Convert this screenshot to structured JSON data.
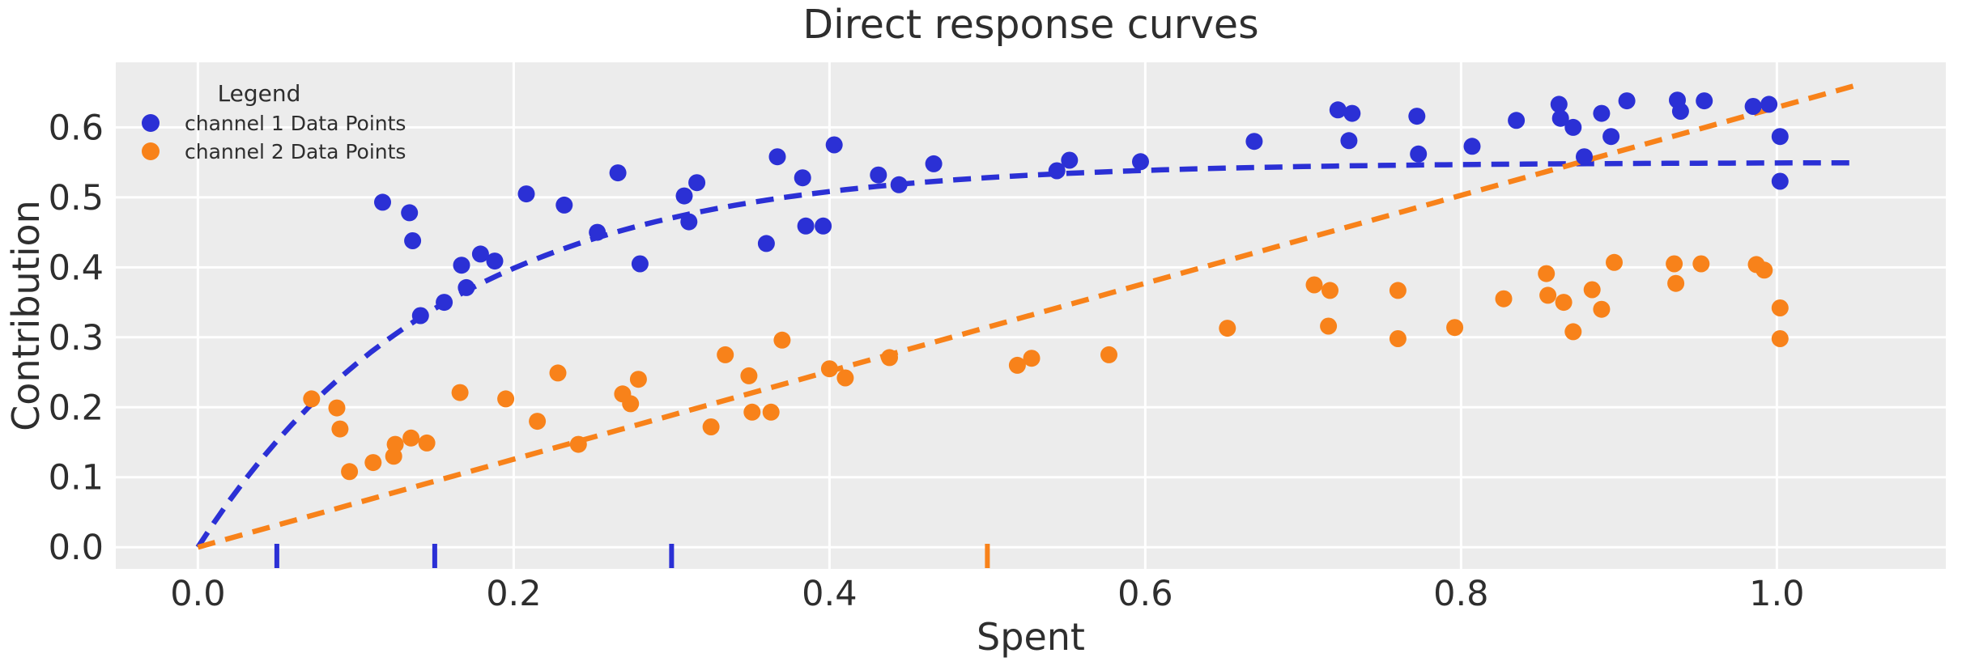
{
  "title": "Direct response curves",
  "axes": {
    "xlabel": "Spent",
    "ylabel": "Contribution"
  },
  "legend": {
    "title": "Legend",
    "entries": [
      {
        "label": "channel 1 Data Points",
        "color": "#2b30d5"
      },
      {
        "label": "channel 2 Data Points",
        "color": "#f8821a"
      }
    ]
  },
  "colors": {
    "plot_background": "#ececec",
    "gridline": "#ffffff",
    "text": "#2e2e2e",
    "channel1": "#2b30d5",
    "channel2": "#f8821a"
  },
  "chart_data": {
    "type": "scatter",
    "title": "Direct response curves",
    "xlabel": "Spent",
    "ylabel": "Contribution",
    "xlim": [
      -0.052,
      1.107
    ],
    "ylim": [
      -0.031,
      0.693
    ],
    "x_ticks": [
      0.0,
      0.2,
      0.4,
      0.6,
      0.8,
      1.0
    ],
    "y_ticks": [
      0.0,
      0.1,
      0.2,
      0.3,
      0.4,
      0.5,
      0.6
    ],
    "grid": true,
    "legend_position": "upper left",
    "series": [
      {
        "name": "channel 1 Data Points",
        "color": "#2b30d5",
        "marker_radius": 10.5,
        "points": [
          [
            0.117,
            0.493
          ],
          [
            0.134,
            0.478
          ],
          [
            0.136,
            0.438
          ],
          [
            0.141,
            0.331
          ],
          [
            0.156,
            0.35
          ],
          [
            0.17,
            0.371
          ],
          [
            0.167,
            0.403
          ],
          [
            0.179,
            0.419
          ],
          [
            0.188,
            0.409
          ],
          [
            0.208,
            0.505
          ],
          [
            0.232,
            0.489
          ],
          [
            0.253,
            0.45
          ],
          [
            0.266,
            0.535
          ],
          [
            0.28,
            0.405
          ],
          [
            0.308,
            0.502
          ],
          [
            0.316,
            0.521
          ],
          [
            0.311,
            0.465
          ],
          [
            0.36,
            0.434
          ],
          [
            0.367,
            0.558
          ],
          [
            0.383,
            0.528
          ],
          [
            0.403,
            0.575
          ],
          [
            0.385,
            0.459
          ],
          [
            0.396,
            0.459
          ],
          [
            0.431,
            0.532
          ],
          [
            0.444,
            0.518
          ],
          [
            0.466,
            0.548
          ],
          [
            0.544,
            0.538
          ],
          [
            0.552,
            0.553
          ],
          [
            0.597,
            0.551
          ],
          [
            0.669,
            0.58
          ],
          [
            0.722,
            0.625
          ],
          [
            0.731,
            0.62
          ],
          [
            0.729,
            0.581
          ],
          [
            0.772,
            0.616
          ],
          [
            0.773,
            0.562
          ],
          [
            0.807,
            0.573
          ],
          [
            0.835,
            0.61
          ],
          [
            0.862,
            0.633
          ],
          [
            0.863,
            0.613
          ],
          [
            0.871,
            0.6
          ],
          [
            0.889,
            0.62
          ],
          [
            0.895,
            0.587
          ],
          [
            0.878,
            0.558
          ],
          [
            0.905,
            0.638
          ],
          [
            0.937,
            0.639
          ],
          [
            0.939,
            0.623
          ],
          [
            0.954,
            0.638
          ],
          [
            0.985,
            0.63
          ],
          [
            0.995,
            0.633
          ],
          [
            1.002,
            0.587
          ],
          [
            1.002,
            0.523
          ]
        ],
        "fit_curve": {
          "type": "saturating_exponential",
          "ymax": 0.55,
          "rate": 0.155,
          "x_start": 0,
          "x_end": 1.05
        },
        "spend_markers": [
          0.05,
          0.15,
          0.3
        ]
      },
      {
        "name": "channel 2 Data Points",
        "color": "#f8821a",
        "marker_radius": 10.5,
        "points": [
          [
            0.072,
            0.212
          ],
          [
            0.088,
            0.199
          ],
          [
            0.09,
            0.169
          ],
          [
            0.096,
            0.108
          ],
          [
            0.111,
            0.121
          ],
          [
            0.124,
            0.13
          ],
          [
            0.125,
            0.147
          ],
          [
            0.135,
            0.156
          ],
          [
            0.145,
            0.149
          ],
          [
            0.166,
            0.221
          ],
          [
            0.195,
            0.212
          ],
          [
            0.215,
            0.18
          ],
          [
            0.228,
            0.249
          ],
          [
            0.241,
            0.147
          ],
          [
            0.269,
            0.219
          ],
          [
            0.274,
            0.205
          ],
          [
            0.279,
            0.24
          ],
          [
            0.325,
            0.172
          ],
          [
            0.334,
            0.275
          ],
          [
            0.349,
            0.245
          ],
          [
            0.351,
            0.193
          ],
          [
            0.363,
            0.193
          ],
          [
            0.37,
            0.296
          ],
          [
            0.4,
            0.255
          ],
          [
            0.41,
            0.242
          ],
          [
            0.438,
            0.271
          ],
          [
            0.519,
            0.26
          ],
          [
            0.528,
            0.27
          ],
          [
            0.577,
            0.275
          ],
          [
            0.652,
            0.313
          ],
          [
            0.707,
            0.375
          ],
          [
            0.717,
            0.367
          ],
          [
            0.716,
            0.316
          ],
          [
            0.76,
            0.367
          ],
          [
            0.76,
            0.298
          ],
          [
            0.796,
            0.314
          ],
          [
            0.827,
            0.355
          ],
          [
            0.854,
            0.391
          ],
          [
            0.855,
            0.36
          ],
          [
            0.865,
            0.35
          ],
          [
            0.871,
            0.308
          ],
          [
            0.883,
            0.368
          ],
          [
            0.889,
            0.34
          ],
          [
            0.897,
            0.407
          ],
          [
            0.935,
            0.405
          ],
          [
            0.936,
            0.377
          ],
          [
            0.952,
            0.405
          ],
          [
            0.987,
            0.404
          ],
          [
            0.992,
            0.396
          ],
          [
            1.002,
            0.342
          ],
          [
            1.002,
            0.298
          ]
        ],
        "fit_curve": {
          "type": "linear",
          "x_start": 0,
          "y_start": 0,
          "x_end": 1.05,
          "y_end": 0.66
        },
        "spend_markers": [
          0.5
        ]
      }
    ]
  }
}
